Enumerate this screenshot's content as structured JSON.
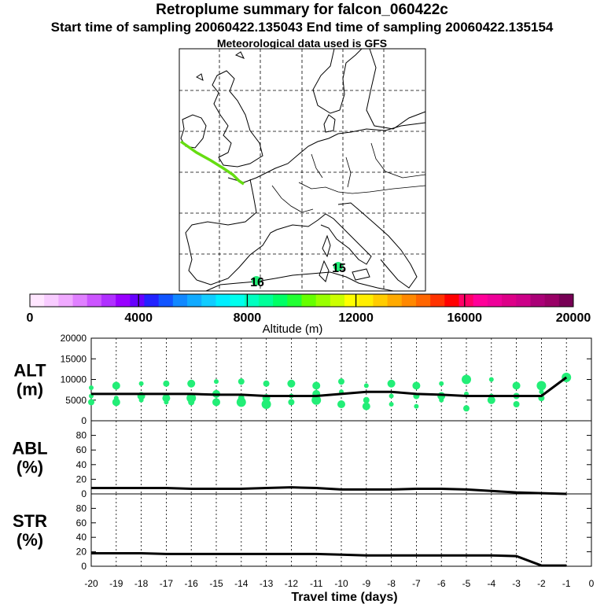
{
  "header": {
    "title": "Retroplume summary for falcon_060422c",
    "sampling_line": "Start time of sampling 20060422.135043     End time of sampling 20060422.135154",
    "met_line": "Meteorological data used is GFS"
  },
  "map": {
    "track_color": "#66dd11",
    "labels": [
      "16",
      "15"
    ]
  },
  "colorbar": {
    "ticks": [
      "0",
      "4000",
      "8000",
      "12000",
      "16000",
      "20000"
    ],
    "label": "Altitude (m)",
    "colors": [
      "#ffe6ff",
      "#f8ccff",
      "#f0aaff",
      "#e080ff",
      "#cc55ff",
      "#b030ff",
      "#9900ff",
      "#6600ff",
      "#2222ff",
      "#1155ff",
      "#1188ff",
      "#11aaff",
      "#11ccff",
      "#00eeff",
      "#00ffee",
      "#00ffc0",
      "#00ff99",
      "#00ff66",
      "#22ff33",
      "#66ff00",
      "#99ff00",
      "#ccff00",
      "#ffff00",
      "#ffee00",
      "#ffcc00",
      "#ffaa00",
      "#ff8800",
      "#ff6600",
      "#ff3300",
      "#ff0000",
      "#ff0066",
      "#ff0099",
      "#ee0099",
      "#dd0088",
      "#cc0088",
      "#aa0077",
      "#990066",
      "#770055"
    ]
  },
  "chart_data": {
    "type": "line",
    "xlabel": "Travel time (days)",
    "x_ticks": [
      "-20",
      "-19",
      "-18",
      "-17",
      "-16",
      "-15",
      "-14",
      "-13",
      "-12",
      "-11",
      "-10",
      "-9",
      "-8",
      "-7",
      "-6",
      "-5",
      "-4",
      "-3",
      "-2",
      "-1",
      "0"
    ],
    "x": [
      -20,
      -19,
      -18,
      -17,
      -16,
      -15,
      -14,
      -13,
      -12,
      -11,
      -10,
      -9,
      -8,
      -7,
      -6,
      -5,
      -4,
      -3,
      -2,
      -1
    ],
    "panels": [
      {
        "name": "ALT",
        "ylabel_line1": "ALT",
        "ylabel_line2": "(m)",
        "ylim": [
          0,
          20000
        ],
        "y_ticks": [
          "0",
          "5000",
          "10000",
          "15000",
          "20000"
        ],
        "y_tick_values": [
          0,
          5000,
          10000,
          15000,
          20000
        ],
        "values": [
          6500,
          6500,
          6500,
          6500,
          6500,
          6300,
          6300,
          6000,
          6000,
          6000,
          6500,
          7000,
          7000,
          6500,
          6300,
          6000,
          6000,
          6000,
          6000,
          10500
        ],
        "scatter_color": "#22ee77",
        "scatter": [
          [
            -20,
            8000
          ],
          [
            -20,
            6000
          ],
          [
            -20,
            4500
          ],
          [
            -19,
            8500
          ],
          [
            -19,
            5500
          ],
          [
            -19,
            4500
          ],
          [
            -18,
            9000
          ],
          [
            -18,
            6000
          ],
          [
            -18,
            5000
          ],
          [
            -17,
            9000
          ],
          [
            -17,
            5500
          ],
          [
            -17,
            4500
          ],
          [
            -16,
            9000
          ],
          [
            -16,
            5500
          ],
          [
            -16,
            4500
          ],
          [
            -15,
            9500
          ],
          [
            -15,
            6500
          ],
          [
            -15,
            4500
          ],
          [
            -14,
            9500
          ],
          [
            -14,
            5500
          ],
          [
            -14,
            4500
          ],
          [
            -13,
            9000
          ],
          [
            -13,
            5500
          ],
          [
            -13,
            4000
          ],
          [
            -12,
            9000
          ],
          [
            -12,
            6000
          ],
          [
            -12,
            4500
          ],
          [
            -11,
            8500
          ],
          [
            -11,
            6500
          ],
          [
            -11,
            5000
          ],
          [
            -10,
            9500
          ],
          [
            -10,
            7000
          ],
          [
            -10,
            4000
          ],
          [
            -9,
            8500
          ],
          [
            -9,
            5000
          ],
          [
            -9,
            3500
          ],
          [
            -8,
            9000
          ],
          [
            -8,
            6000
          ],
          [
            -8,
            4000
          ],
          [
            -7,
            8500
          ],
          [
            -7,
            6000
          ],
          [
            -7,
            3500
          ],
          [
            -6,
            9000
          ],
          [
            -6,
            6000
          ],
          [
            -6,
            5000
          ],
          [
            -5,
            10000
          ],
          [
            -5,
            6500
          ],
          [
            -5,
            3000
          ],
          [
            -4,
            10000
          ],
          [
            -4,
            6000
          ],
          [
            -4,
            5000
          ],
          [
            -3,
            8500
          ],
          [
            -3,
            6000
          ],
          [
            -3,
            4000
          ],
          [
            -2,
            8500
          ],
          [
            -2,
            7000
          ],
          [
            -2,
            5500
          ],
          [
            -1,
            10500
          ]
        ]
      },
      {
        "name": "ABL",
        "ylabel_line1": "ABL",
        "ylabel_line2": "(%)",
        "ylim": [
          0,
          100
        ],
        "y_ticks": [
          "0",
          "20",
          "40",
          "60",
          "80"
        ],
        "y_tick_values": [
          0,
          20,
          40,
          60,
          80
        ],
        "values": [
          8,
          8,
          8,
          8,
          7,
          7,
          7,
          8,
          9,
          8,
          6,
          6,
          6,
          7,
          7,
          6,
          4,
          2,
          1,
          0
        ]
      },
      {
        "name": "STR",
        "ylabel_line1": "STR",
        "ylabel_line2": "(%)",
        "ylim": [
          0,
          100
        ],
        "y_ticks": [
          "0",
          "20",
          "40",
          "60",
          "80"
        ],
        "y_tick_values": [
          0,
          20,
          40,
          60,
          80
        ],
        "values": [
          18,
          18,
          18,
          17,
          17,
          17,
          17,
          17,
          17,
          17,
          16,
          15,
          15,
          15,
          15,
          15,
          15,
          14,
          1,
          1
        ]
      }
    ]
  }
}
